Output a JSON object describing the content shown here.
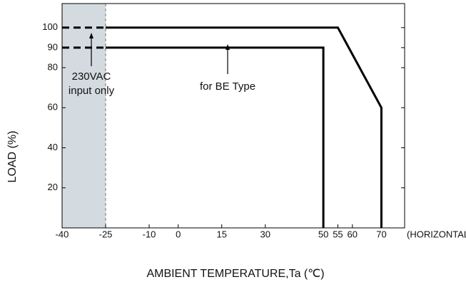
{
  "chart_data": {
    "type": "line",
    "xlabel": "AMBIENT TEMPERATURE,Ta (℃)",
    "ylabel": "LOAD (%)",
    "x_axis_note": "(HORIZONTAL)",
    "xlim": [
      -40,
      78
    ],
    "ylim": [
      0,
      112
    ],
    "xticks": [
      -40,
      -25,
      -10,
      0,
      15,
      30,
      50,
      55,
      60,
      70
    ],
    "yticks": [
      20,
      40,
      60,
      80,
      90,
      100
    ],
    "shade": [
      -40,
      -25
    ],
    "shade_color": "#d3dbe0",
    "series": [
      {
        "color": "#000000",
        "dashed": false,
        "x": [
          -25,
          55,
          70,
          70
        ],
        "values": [
          100,
          100,
          60,
          0
        ]
      },
      {
        "color": "#000000",
        "dashed": false,
        "x": [
          -25,
          50,
          50
        ],
        "values": [
          90,
          90,
          0
        ]
      },
      {
        "color": "#000000",
        "dashed": true,
        "x": [
          -40,
          -25
        ],
        "values": [
          100,
          100
        ]
      },
      {
        "color": "#000000",
        "dashed": true,
        "x": [
          -40,
          -25
        ],
        "values": [
          90,
          90
        ]
      }
    ],
    "annotations": [
      "230VAC",
      "input only",
      "for BE Type"
    ]
  }
}
